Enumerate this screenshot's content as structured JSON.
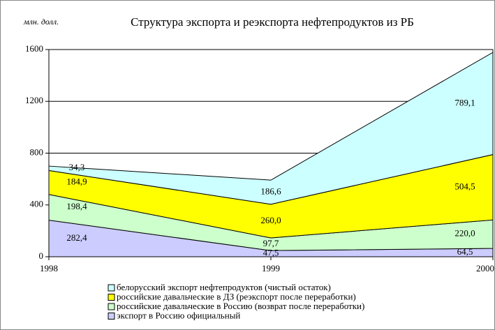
{
  "chart_data": {
    "type": "stacked_area",
    "title": "Структура экспорта и реэкспорта нефтепродуктов из РБ",
    "y_label": "млн. долл.",
    "x": [
      1998,
      1999,
      2000
    ],
    "xlim": [
      1998,
      2000
    ],
    "xticks": [
      1998,
      1999,
      2000
    ],
    "ylim": [
      0,
      1600
    ],
    "yticks": [
      0,
      400,
      800,
      1200,
      1600
    ],
    "grid": true,
    "legend": "bottom",
    "series": [
      {
        "name": "белорусский экспорт нефтепродуктов (чистый остаток)",
        "color": "#ccffff",
        "values": [
          34.3,
          186.6,
          789.1
        ],
        "value_labels": [
          "34,3",
          "186,6",
          "789,1"
        ]
      },
      {
        "name": "российские давальческие в ДЗ (реэкспорт после переработки)",
        "color": "#ffff00",
        "values": [
          184.9,
          260.0,
          504.5
        ],
        "value_labels": [
          "184,9",
          "260,0",
          "504,5"
        ]
      },
      {
        "name": "российские давальческие в Россию (возврат после переработки)",
        "color": "#ccffcc",
        "values": [
          198.4,
          97.7,
          220.0
        ],
        "value_labels": [
          "198,4",
          "97,7",
          "220,0"
        ]
      },
      {
        "name": "экспорт в Россию официальный",
        "color": "#ccccff",
        "values": [
          282.4,
          47.5,
          64.5
        ],
        "value_labels": [
          "282,4",
          "47,5",
          "64,5"
        ]
      }
    ]
  }
}
